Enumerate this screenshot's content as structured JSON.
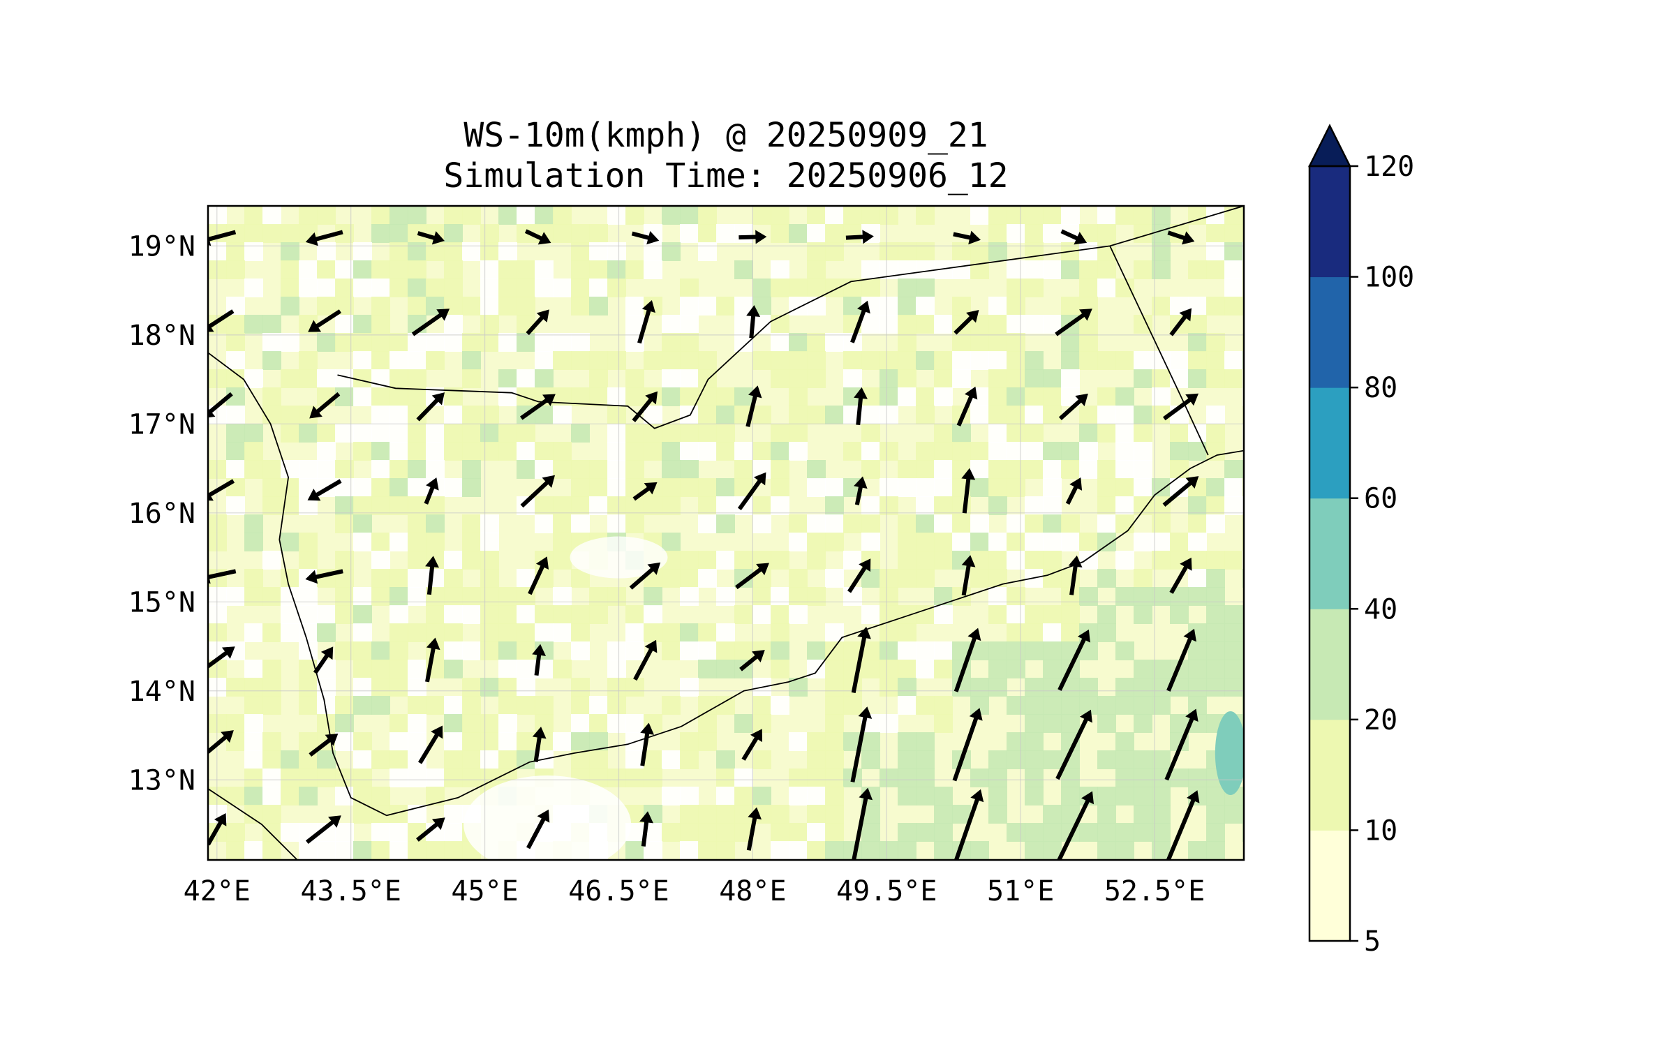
{
  "title": {
    "line1": "WS-10m(kmph) @ 20250909_21",
    "line2": "Simulation Time: 20250906_12"
  },
  "map": {
    "extent": {
      "lon_min": 41.9,
      "lon_max": 53.5,
      "lat_min": 12.1,
      "lat_max": 19.45
    },
    "x_ticks": [
      {
        "value": 42.0,
        "label": "42°E"
      },
      {
        "value": 43.5,
        "label": "43.5°E"
      },
      {
        "value": 45.0,
        "label": "45°E"
      },
      {
        "value": 46.5,
        "label": "46.5°E"
      },
      {
        "value": 48.0,
        "label": "48°E"
      },
      {
        "value": 49.5,
        "label": "49.5°E"
      },
      {
        "value": 51.0,
        "label": "51°E"
      },
      {
        "value": 52.5,
        "label": "52.5°E"
      }
    ],
    "y_ticks": [
      {
        "value": 13,
        "label": "13°N"
      },
      {
        "value": 14,
        "label": "14°N"
      },
      {
        "value": 15,
        "label": "15°N"
      },
      {
        "value": 16,
        "label": "16°N"
      },
      {
        "value": 17,
        "label": "17°N"
      },
      {
        "value": 18,
        "label": "18°N"
      },
      {
        "value": 19,
        "label": "19°N"
      }
    ],
    "gridlines": true,
    "coastline": [
      [
        41.9,
        17.8
      ],
      [
        42.3,
        17.5
      ],
      [
        42.6,
        17.0
      ],
      [
        42.8,
        16.4
      ],
      [
        42.7,
        15.7
      ],
      [
        42.8,
        15.2
      ],
      [
        43.0,
        14.6
      ],
      [
        43.2,
        13.9
      ],
      [
        43.3,
        13.3
      ],
      [
        43.5,
        12.8
      ],
      [
        43.9,
        12.6
      ],
      [
        44.3,
        12.7
      ],
      [
        44.7,
        12.8
      ],
      [
        45.0,
        12.95
      ],
      [
        45.5,
        13.2
      ],
      [
        46.0,
        13.3
      ],
      [
        46.6,
        13.4
      ],
      [
        47.2,
        13.6
      ],
      [
        47.9,
        14.0
      ],
      [
        48.4,
        14.1
      ],
      [
        48.7,
        14.2
      ],
      [
        49.0,
        14.6
      ],
      [
        49.6,
        14.8
      ],
      [
        50.2,
        15.0
      ],
      [
        50.8,
        15.2
      ],
      [
        51.3,
        15.3
      ],
      [
        51.7,
        15.45
      ],
      [
        52.2,
        15.8
      ],
      [
        52.5,
        16.2
      ],
      [
        52.9,
        16.5
      ],
      [
        53.2,
        16.65
      ],
      [
        53.5,
        16.7
      ]
    ],
    "borders": [
      [
        [
          43.35,
          17.55
        ],
        [
          44.0,
          17.4
        ],
        [
          45.3,
          17.35
        ],
        [
          45.6,
          17.25
        ],
        [
          46.6,
          17.2
        ],
        [
          46.9,
          16.95
        ],
        [
          47.3,
          17.1
        ],
        [
          47.5,
          17.5
        ],
        [
          48.2,
          18.15
        ],
        [
          49.1,
          18.6
        ],
        [
          52.0,
          19.0
        ],
        [
          53.5,
          19.45
        ]
      ],
      [
        [
          52.0,
          19.0
        ],
        [
          52.8,
          17.3
        ],
        [
          53.1,
          16.65
        ]
      ],
      [
        [
          41.9,
          12.9
        ],
        [
          42.5,
          12.5
        ],
        [
          42.9,
          12.1
        ]
      ]
    ],
    "wind_field_colors": {
      "5-10": "#ffffd9",
      "10-20": "#edf8b1",
      "20-40": "#c7e9b4",
      "40-60": "#7fcdbb",
      "60-80": "#2c9fc0",
      "80-100": "#2164aa",
      "100-120": "#192b7e",
      ">120": "#081d58"
    }
  },
  "colorbar": {
    "levels": [
      5,
      10,
      20,
      40,
      60,
      80,
      100,
      120
    ],
    "labels": [
      "5",
      "10",
      "20",
      "40",
      "60",
      "80",
      "100",
      "120"
    ],
    "colors": [
      "#ffffd9",
      "#edf8b1",
      "#c7e9b4",
      "#7fcdbb",
      "#2c9fc0",
      "#2164aa",
      "#192b7e"
    ],
    "extend_color": "#081d58",
    "extend": "max"
  }
}
